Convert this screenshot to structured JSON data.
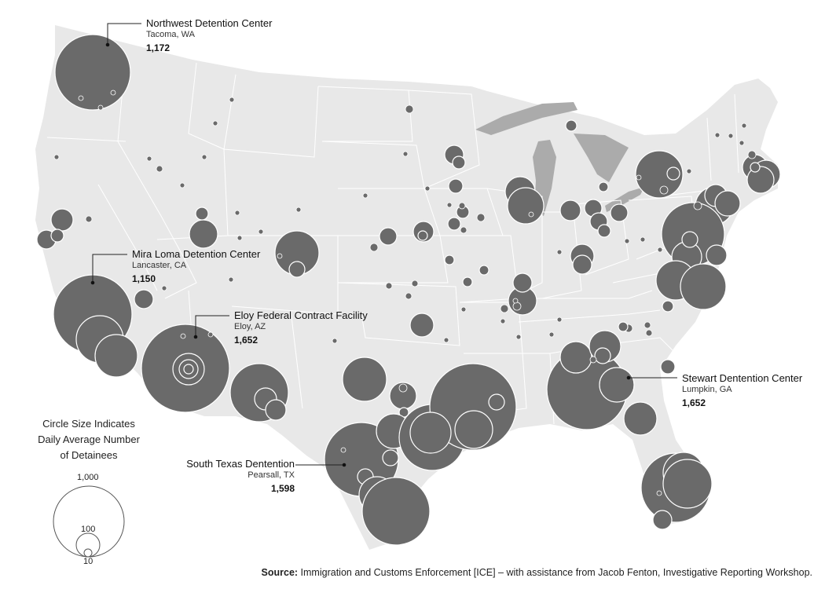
{
  "colors": {
    "land": "#e8e8e8",
    "border": "#ffffff",
    "water": "#ababab",
    "circle": "#6a6a6a",
    "circle_stroke": "#ffffff"
  },
  "callouts": {
    "northwest": {
      "name": "Northwest Detention Center",
      "location": "Tacoma, WA",
      "value": "1,172"
    },
    "miraloma": {
      "name": "Mira Loma Detention Center",
      "location": "Lancaster, CA",
      "value": "1,150"
    },
    "eloy": {
      "name": "Eloy Federal Contract Facility",
      "location": "Eloy, AZ",
      "value": "1,652"
    },
    "stewart": {
      "name": "Stewart Dentention Center",
      "location": "Lumpkin, GA",
      "value": "1,652"
    },
    "southtexas": {
      "name": "South Texas Dentention",
      "location": "Pearsall, TX",
      "value": "1,598"
    }
  },
  "legend": {
    "title_lines": [
      "Circle Size Indicates",
      "Daily Average Number",
      "of Detainees"
    ],
    "sizes": [
      "1,000",
      "100",
      "10"
    ],
    "size_values": [
      1000,
      100,
      10
    ]
  },
  "source": {
    "label": "Source:",
    "text": " Immigration and Customs Enforcement [ICE] – with assistance from Jacob Fenton, Investigative Reporting Workshop."
  }
}
